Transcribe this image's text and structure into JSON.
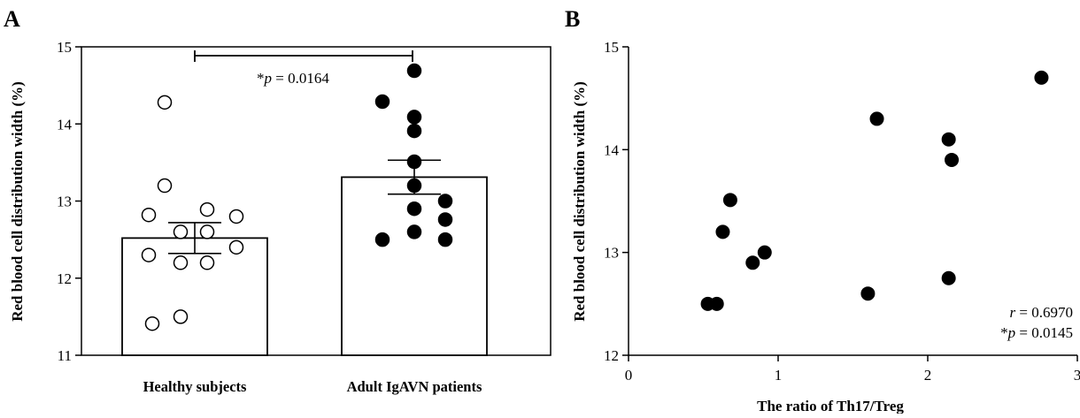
{
  "chart_data": [
    {
      "panel": "A",
      "type": "bar",
      "ylabel": "Red blood cell distribution width (%)",
      "ylim": [
        11,
        15
      ],
      "yticks": [
        11,
        12,
        13,
        14,
        15
      ],
      "categories": [
        "Healthy subjects",
        "Adult IgAVN patients"
      ],
      "series": [
        {
          "values": [
            12.52,
            13.31
          ],
          "sem": [
            0.2,
            0.22
          ],
          "bar_color": "#ffffff",
          "point_fill": [
            "#ffffff",
            "#000000"
          ],
          "points": [
            [
              14.28,
              13.2,
              12.82,
              12.89,
              12.8,
              12.6,
              12.6,
              12.4,
              12.3,
              12.2,
              12.2,
              11.5,
              11.41
            ],
            [
              14.69,
              14.29,
              14.09,
              13.91,
              13.51,
              13.2,
              13.0,
              12.9,
              12.76,
              12.6,
              12.5,
              12.5
            ]
          ]
        }
      ],
      "annotation": {
        "prefix": "*",
        "var": "p",
        "text": " = 0.0164"
      },
      "grid": false
    },
    {
      "panel": "B",
      "type": "scatter",
      "xlabel": "The ratio of Th17/Treg",
      "ylabel": "Red blood cell distribution width (%)",
      "xlim": [
        0,
        3
      ],
      "ylim": [
        12,
        15
      ],
      "xticks": [
        0,
        1,
        2,
        3
      ],
      "yticks": [
        12,
        13,
        14,
        15
      ],
      "series": [
        {
          "color": "#000000",
          "x": [
            0.53,
            0.59,
            0.63,
            0.68,
            0.83,
            0.91,
            1.6,
            1.66,
            2.14,
            2.14,
            2.16,
            2.76
          ],
          "y": [
            12.5,
            12.5,
            13.2,
            13.51,
            12.9,
            13.0,
            12.6,
            14.3,
            12.75,
            14.1,
            13.9,
            14.7
          ]
        }
      ],
      "annotations": [
        {
          "var": "r",
          "text": " = 0.6970"
        },
        {
          "prefix": "*",
          "var": "p",
          "text": " = 0.0145"
        }
      ],
      "grid": false
    }
  ]
}
